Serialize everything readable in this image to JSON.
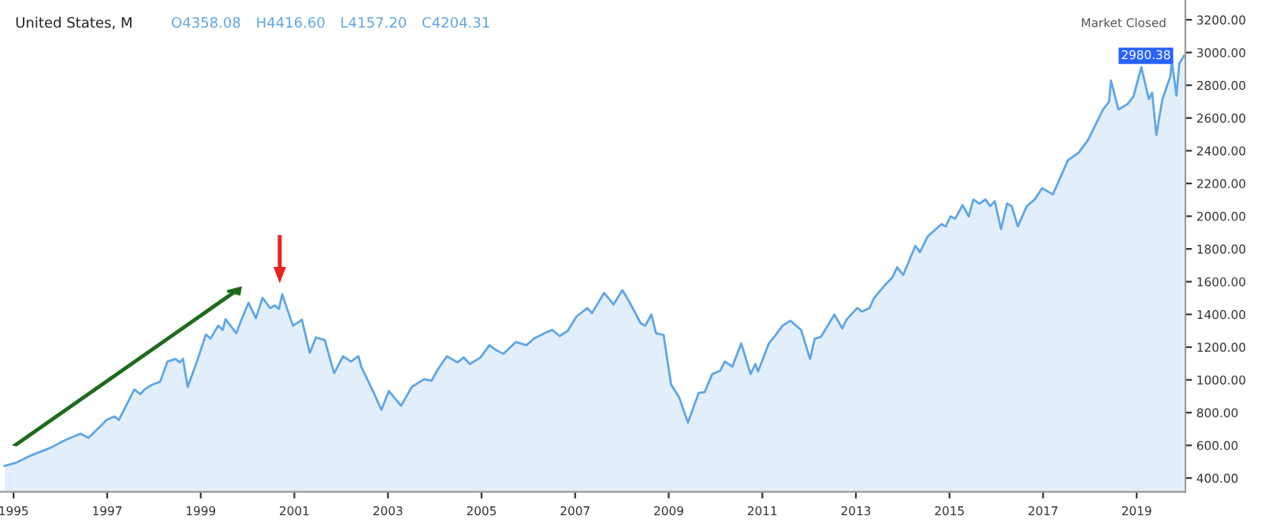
{
  "chart_data": {
    "type": "area",
    "title": "United States, M",
    "annotations": [
      "O4358.08",
      "H4416.60",
      "L4157.20",
      "C4204.31",
      "Market Closed",
      {
        "text": "2980.38",
        "x": 2020.01,
        "y": 2980
      }
    ],
    "x": [
      1994.81,
      1995.03,
      1995.36,
      1995.78,
      1996.11,
      1996.43,
      1996.6,
      1996.89,
      1996.99,
      1997.15,
      1997.25,
      1997.58,
      1997.71,
      1997.8,
      1997.97,
      1998.13,
      1998.29,
      1998.46,
      1998.55,
      1998.62,
      1998.72,
      1998.88,
      1999.11,
      1999.21,
      1999.37,
      1999.47,
      1999.53,
      1999.76,
      1999.86,
      2000.02,
      2000.18,
      2000.32,
      2000.48,
      2000.58,
      2000.67,
      2000.74,
      2000.97,
      2001.13,
      2001.16,
      2001.33,
      2001.46,
      2001.65,
      2001.85,
      2002.04,
      2002.21,
      2002.37,
      2002.43,
      2002.7,
      2002.86,
      2003.02,
      2003.28,
      2003.51,
      2003.77,
      2003.93,
      2004.07,
      2004.26,
      2004.49,
      2004.62,
      2004.75,
      2004.98,
      2005.17,
      2005.3,
      2005.47,
      2005.73,
      2005.96,
      2006.12,
      2006.38,
      2006.51,
      2006.67,
      2006.84,
      2007.03,
      2007.26,
      2007.36,
      2007.62,
      2007.82,
      2008.01,
      2008.17,
      2008.4,
      2008.5,
      2008.63,
      2008.73,
      2008.89,
      2009.05,
      2009.22,
      2009.41,
      2009.64,
      2009.77,
      2009.93,
      2010.1,
      2010.2,
      2010.36,
      2010.55,
      2010.75,
      2010.85,
      2010.91,
      2011.14,
      2011.27,
      2011.43,
      2011.6,
      2011.83,
      2012.02,
      2012.12,
      2012.25,
      2012.54,
      2012.71,
      2012.8,
      2013.03,
      2013.13,
      2013.29,
      2013.39,
      2013.62,
      2013.78,
      2013.88,
      2014.01,
      2014.27,
      2014.37,
      2014.53,
      2014.83,
      2014.92,
      2015.02,
      2015.12,
      2015.28,
      2015.41,
      2015.51,
      2015.64,
      2015.77,
      2015.87,
      2015.97,
      2016.1,
      2016.23,
      2016.33,
      2016.46,
      2016.65,
      2016.82,
      2016.98,
      2017.21,
      2017.53,
      2017.76,
      2017.96,
      2018.28,
      2018.41,
      2018.45,
      2018.61,
      2018.8,
      2018.93,
      2019.1,
      2019.26,
      2019.33,
      2019.42,
      2019.55,
      2019.72,
      2019.75,
      2019.85,
      2019.91,
      2020.01
    ],
    "series": [
      {
        "color": "#5ea6e6",
        "values": [
          475,
          491,
          537,
          584,
          633,
          671,
          646,
          727,
          755,
          776,
          755,
          941,
          913,
          941,
          972,
          988,
          1112,
          1128,
          1107,
          1128,
          957,
          1081,
          1277,
          1252,
          1331,
          1305,
          1371,
          1284,
          1361,
          1471,
          1377,
          1501,
          1439,
          1455,
          1433,
          1523,
          1331,
          1361,
          1368,
          1165,
          1259,
          1243,
          1041,
          1144,
          1112,
          1144,
          1081,
          920,
          817,
          932,
          842,
          957,
          1004,
          995,
          1066,
          1144,
          1107,
          1137,
          1097,
          1137,
          1212,
          1184,
          1159,
          1231,
          1212,
          1252,
          1290,
          1305,
          1268,
          1299,
          1387,
          1439,
          1408,
          1532,
          1461,
          1548,
          1471,
          1346,
          1331,
          1399,
          1284,
          1275,
          972,
          895,
          739,
          920,
          926,
          1035,
          1056,
          1112,
          1081,
          1223,
          1035,
          1097,
          1051,
          1223,
          1268,
          1331,
          1361,
          1305,
          1128,
          1252,
          1262,
          1399,
          1315,
          1368,
          1439,
          1417,
          1439,
          1501,
          1579,
          1626,
          1688,
          1641,
          1819,
          1781,
          1875,
          1952,
          1937,
          1999,
          1984,
          2068,
          1999,
          2102,
          2077,
          2102,
          2061,
          2092,
          1921,
          2077,
          2061,
          1937,
          2061,
          2102,
          2171,
          2133,
          2341,
          2388,
          2465,
          2652,
          2699,
          2829,
          2652,
          2684,
          2731,
          2911,
          2715,
          2755,
          2497,
          2715,
          2855,
          2955,
          2736,
          2932,
          2980
        ]
      }
    ],
    "xlim": [
      1994.71,
      2020.04
    ],
    "ylim": [
      316,
      3321
    ],
    "xticks": [
      1995,
      1997,
      1999,
      2001,
      2003,
      2005,
      2007,
      2009,
      2011,
      2013,
      2015,
      2017,
      2019
    ],
    "yticks": [
      {
        "value": 400,
        "label": "400.00"
      },
      {
        "value": 600,
        "label": "600.00"
      },
      {
        "value": 800,
        "label": "800.00"
      },
      {
        "value": 1000,
        "label": "1000.00"
      },
      {
        "value": 1200,
        "label": "1200.00"
      },
      {
        "value": 1400,
        "label": "1400.00"
      },
      {
        "value": 1600,
        "label": "1600.00"
      },
      {
        "value": 1800,
        "label": "1800.00"
      },
      {
        "value": 2000,
        "label": "2000.00"
      },
      {
        "value": 2200,
        "label": "2200.00"
      },
      {
        "value": 2400,
        "label": "2400.00"
      },
      {
        "value": 2600,
        "label": "2600.00"
      },
      {
        "value": 2800,
        "label": "2800.00"
      },
      {
        "value": 3000,
        "label": "3000.00"
      },
      {
        "value": 3200,
        "label": "3200.00"
      }
    ],
    "grid": false,
    "legend": false
  }
}
